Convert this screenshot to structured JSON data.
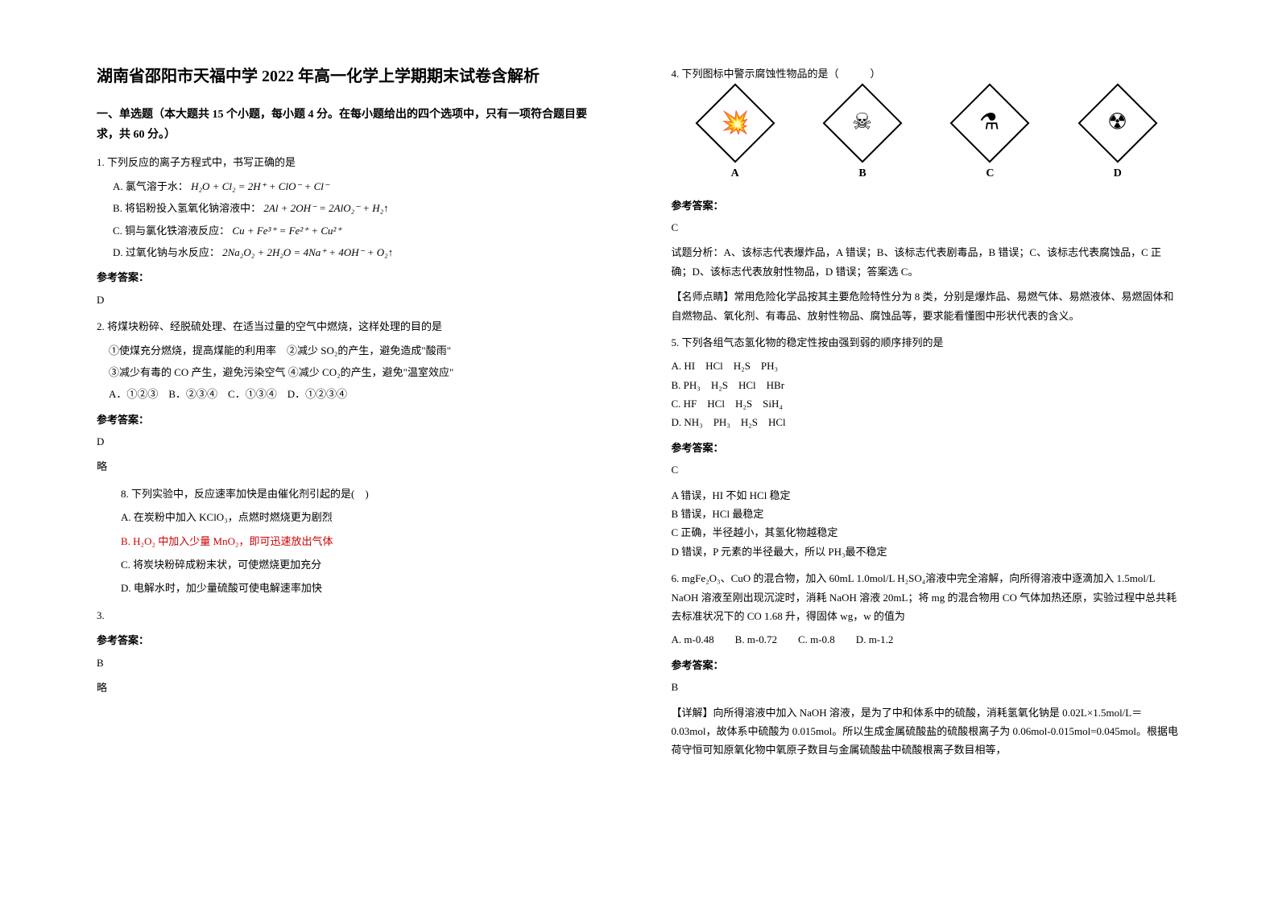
{
  "title": "湖南省邵阳市天福中学 2022 年高一化学上学期期末试卷含解析",
  "section1": "一、单选题（本大题共 15 个小题，每小题 4 分。在每小题给出的四个选项中，只有一项符合题目要求，共 60 分。）",
  "answer_label": "参考答案：",
  "q1": {
    "text": "1. 下列反应的离子方程式中，书写正确的是",
    "a": "A. 氯气溶于水：",
    "a_formula": "H₂O + Cl₂ = 2H⁺ + ClO⁻ + Cl⁻",
    "b": "B. 将铝粉投入氢氧化钠溶液中：",
    "b_formula": "2Al + 2OH⁻ = 2AlO₂⁻ + H₂↑",
    "c": "C. 铜与氯化铁溶液反应：",
    "c_formula": "Cu + Fe³⁺ = Fe²⁺ + Cu²⁺",
    "d": "D. 过氧化钠与水反应：",
    "d_formula": "2Na₂O₂ + 2H₂O = 4Na⁺ + 4OH⁻ + O₂↑",
    "answer": "D"
  },
  "q2": {
    "text": "2. 将煤块粉碎、经脱硫处理、在适当过量的空气中燃烧，这样处理的目的是",
    "line1": "①使煤充分燃烧，提高煤能的利用率　②减少 SO₂的产生，避免造成\"酸雨\"",
    "line2": "③减少有毒的 CO 产生，避免污染空气 ④减少 CO₂的产生，避免\"温室效应\"",
    "options": "A．①②③　B．②③④　C．①③④　D．①②③④",
    "answer": "D",
    "note": "略"
  },
  "q3": {
    "num": "3.",
    "embedded_q": "8. 下列实验中，反应速率加快是由催化剂引起的是(　)",
    "a": "A. 在炭粉中加入 KClO₃，点燃时燃烧更为剧烈",
    "b": "B. H₂O₂ 中加入少量 MnO₂，即可迅速放出气体",
    "c": "C. 将炭块粉碎成粉末状，可使燃烧更加充分",
    "d": "D. 电解水时，加少量硫酸可使电解速率加快",
    "answer": "B",
    "note": "略"
  },
  "q4": {
    "text": "4. 下列图标中警示腐蚀性物品的是（　　　）",
    "labels": [
      "A",
      "B",
      "C",
      "D"
    ],
    "answer": "C",
    "analysis": "试题分析：A、该标志代表爆炸品，A 错误；B、该标志代表剧毒品，B 错误；C、该标志代表腐蚀品，C 正确；D、该标志代表放射性物品，D 错误；答案选 C。",
    "comment": "【名师点睛】常用危险化学品按其主要危险特性分为 8 类，分别是爆炸品、易燃气体、易燃液体、易燃固体和自燃物品、氧化剂、有毒品、放射性物品、腐蚀品等，要求能看懂图中形状代表的含义。"
  },
  "q5": {
    "text": "5. 下列各组气态氢化物的稳定性按由强到弱的顺序排列的是",
    "a": "A. HI　HCl　H₂S　PH₃",
    "b": "B. PH₃　H₂S　HCl　HBr",
    "c": "C. HF　HCl　H₂S　SiH₄",
    "d": "D. NH₃　PH₃　H₂S　HCl",
    "answer": "C",
    "exp_a": "A 错误，HI 不如 HCl 稳定",
    "exp_b": "B 错误，HCl 最稳定",
    "exp_c": "C 正确，半径越小，其氢化物越稳定",
    "exp_d": "D 错误，P 元素的半径最大，所以 PH₃最不稳定"
  },
  "q6": {
    "text": "6. mgFe₂O₃、CuO 的混合物，加入 60mL 1.0mol/L H₂SO₄溶液中完全溶解，向所得溶液中逐滴加入 1.5mol/L NaOH 溶液至刚出现沉淀时，消耗 NaOH 溶液 20mL；将 mg 的混合物用 CO 气体加热还原，实验过程中总共耗去标准状况下的 CO 1.68 升，得固体 wg，w 的值为",
    "options": "A. m-0.48　　B. m-0.72　　C. m-0.8　　D. m-1.2",
    "answer": "B",
    "detail": "【详解】向所得溶液中加入 NaOH 溶液，是为了中和体系中的硫酸，消耗氢氧化钠是 0.02L×1.5mol/L＝0.03mol，故体系中硫酸为 0.015mol。所以生成金属硫酸盐的硫酸根离子为 0.06mol-0.015mol=0.045mol。根据电荷守恒可知原氧化物中氧原子数目与金属硫酸盐中硫酸根离子数目相等，"
  }
}
